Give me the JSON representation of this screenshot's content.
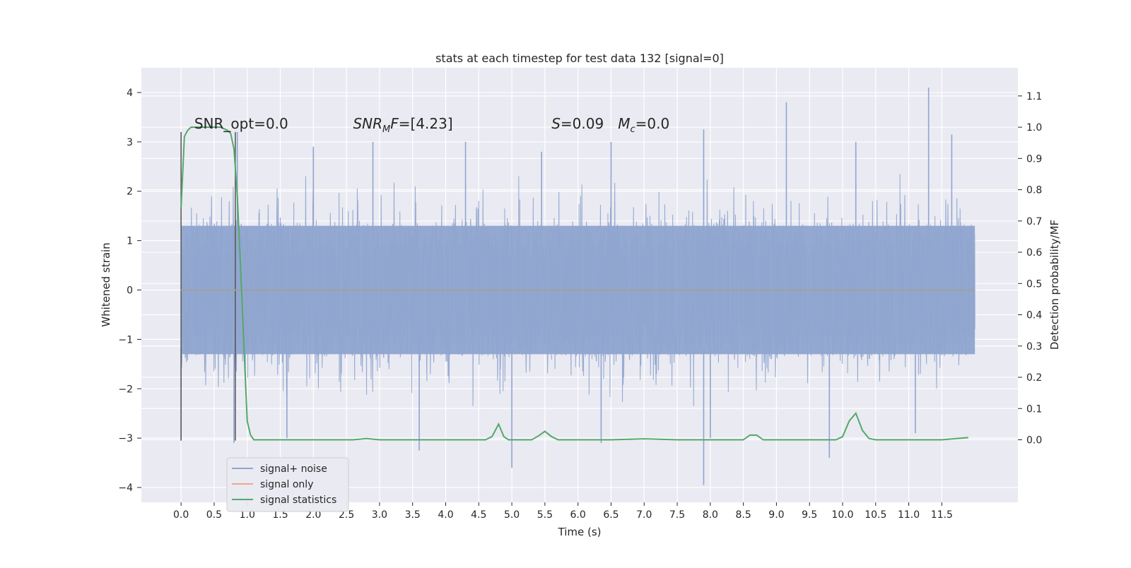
{
  "chart_data": {
    "type": "line",
    "title": "stats at each timestep for test data 132 [signal=0]",
    "xlabel": "Time (s)",
    "ylabel": "Whitened strain",
    "ylabel_right": "Detection probability/MF",
    "xlim": [
      -0.6,
      12.65
    ],
    "ylim": [
      -4.3,
      4.5
    ],
    "ylim_right": [
      -0.2,
      1.19
    ],
    "x_ticks": [
      0.0,
      0.5,
      1.0,
      1.5,
      2.0,
      2.5,
      3.0,
      3.5,
      4.0,
      4.5,
      5.0,
      5.5,
      6.0,
      6.5,
      7.0,
      7.5,
      8.0,
      8.5,
      9.0,
      9.5,
      10.0,
      10.5,
      11.0,
      11.5
    ],
    "x_tick_labels": [
      "0.0",
      "0.5",
      "1.0",
      "1.5",
      "2.0",
      "2.5",
      "3.0",
      "3.5",
      "4.0",
      "4.5",
      "5.0",
      "5.5",
      "6.0",
      "6.5",
      "7.0",
      "7.5",
      "8.0",
      "8.5",
      "9.0",
      "9.5",
      "10.0",
      "10.5",
      "11.0",
      "11.5"
    ],
    "y_ticks": [
      4,
      3,
      2,
      1,
      0,
      -1,
      -2,
      -3,
      -4
    ],
    "y_tick_labels": [
      "4",
      "3",
      "2",
      "1",
      "0",
      "−1",
      "−2",
      "−3",
      "−4"
    ],
    "y_right_ticks": [
      1.1,
      1.0,
      0.9,
      0.8,
      0.7,
      0.6,
      0.5,
      0.4,
      0.3,
      0.2,
      0.1,
      0.0
    ],
    "y_right_tick_labels": [
      "1.1",
      "1.0",
      "0.9",
      "0.8",
      "0.7",
      "0.6",
      "0.5",
      "0.4",
      "0.3",
      "0.2",
      "0.1",
      "0.0"
    ],
    "grid": true,
    "legend_position": "bottom-left",
    "annotations": [
      {
        "text": "SNR_opt=0.0",
        "x": 0.2,
        "y": 3.3,
        "italic": false
      },
      {
        "text": "SNR_MF=[4.23]",
        "x": 2.6,
        "y": 3.3,
        "italic": true
      },
      {
        "text": "S=0.09  M_c=0.0",
        "x": 5.6,
        "y": 3.3,
        "italic": true
      }
    ],
    "series": [
      {
        "name": "signal+ noise",
        "axis": "left",
        "color": "#8fa5cf",
        "style": "dense noisy trace",
        "x_range": [
          0.0,
          12.0
        ],
        "band_typical": [
          -1.3,
          1.3
        ],
        "peak_max": [
          [
            0.85,
            3.2
          ],
          [
            2.0,
            2.9
          ],
          [
            2.9,
            3.0
          ],
          [
            4.3,
            3.0
          ],
          [
            5.45,
            2.8
          ],
          [
            6.5,
            3.0
          ],
          [
            7.9,
            3.25
          ],
          [
            9.15,
            3.8
          ],
          [
            10.2,
            3.0
          ],
          [
            11.3,
            4.1
          ],
          [
            11.65,
            3.15
          ]
        ],
        "peak_min": [
          [
            0.0,
            -3.05
          ],
          [
            0.8,
            -3.1
          ],
          [
            1.6,
            -3.0
          ],
          [
            3.6,
            -3.25
          ],
          [
            5.0,
            -3.6
          ],
          [
            6.35,
            -3.1
          ],
          [
            7.9,
            -3.95
          ],
          [
            8.0,
            -3.0
          ],
          [
            9.8,
            -3.4
          ],
          [
            11.1,
            -2.9
          ]
        ]
      },
      {
        "name": "signal only",
        "axis": "left",
        "color": "#dd8452",
        "x": [
          0.0,
          12.0
        ],
        "y": [
          0.0,
          0.0
        ]
      },
      {
        "name": "signal statistics",
        "axis": "right",
        "color": "#55a868",
        "x": [
          0.0,
          0.05,
          0.1,
          0.15,
          0.2,
          0.3,
          0.4,
          0.5,
          0.6,
          0.7,
          0.75,
          0.8,
          0.85,
          0.9,
          0.95,
          1.0,
          1.05,
          1.1,
          1.2,
          1.4,
          2.0,
          2.6,
          2.8,
          3.0,
          4.0,
          4.6,
          4.7,
          4.8,
          4.88,
          4.95,
          5.05,
          5.3,
          5.4,
          5.5,
          5.6,
          5.7,
          6.5,
          7.0,
          7.5,
          8.0,
          8.5,
          8.6,
          8.7,
          8.8,
          9.0,
          9.5,
          9.9,
          10.0,
          10.1,
          10.2,
          10.3,
          10.4,
          10.5,
          11.0,
          11.5,
          11.9
        ],
        "y": [
          0.74,
          0.97,
          0.99,
          1.0,
          1.0,
          1.0,
          1.0,
          1.0,
          1.0,
          0.99,
          0.98,
          0.93,
          0.78,
          0.55,
          0.3,
          0.06,
          0.015,
          0.0,
          0.0,
          0.0,
          0.0,
          0.0,
          0.004,
          0.0,
          0.0,
          0.0,
          0.01,
          0.05,
          0.01,
          0.0,
          0.0,
          0.0,
          0.012,
          0.027,
          0.01,
          0.0,
          0.0,
          0.003,
          0.0,
          0.0,
          0.0,
          0.015,
          0.015,
          0.0,
          0.0,
          0.0,
          0.0,
          0.01,
          0.06,
          0.085,
          0.03,
          0.004,
          0.0,
          0.0,
          0.0,
          0.007
        ]
      }
    ]
  }
}
